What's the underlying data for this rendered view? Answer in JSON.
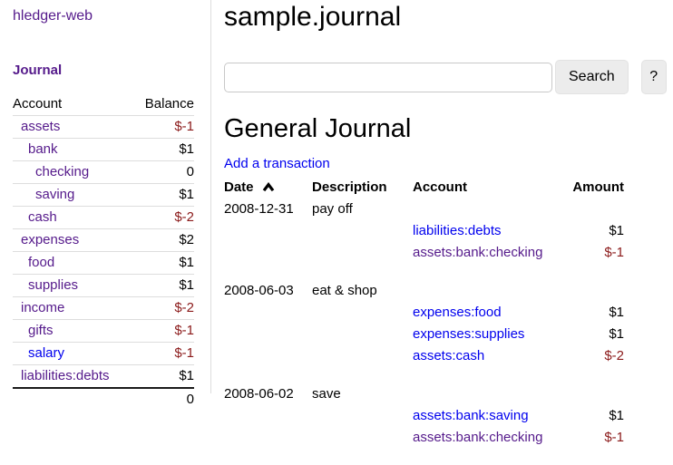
{
  "app": {
    "title": "hledger-web"
  },
  "colors": {
    "link": "#0000ee",
    "visited_link": "#551a8b",
    "negative": "#8b1a1a",
    "row_border": "#dddddd",
    "panel_border": "#dddddd",
    "button_bg": "#ececec",
    "input_border": "#c8c8c8"
  },
  "sidebar": {
    "journal_link": "Journal",
    "accounts_table": {
      "headers": {
        "account": "Account",
        "balance": "Balance"
      },
      "rows": [
        {
          "name": "assets",
          "level": 1,
          "balance": "$-1",
          "negative": true,
          "visited": true
        },
        {
          "name": "bank",
          "level": 2,
          "balance": "$1",
          "negative": false,
          "visited": true
        },
        {
          "name": "checking",
          "level": 3,
          "balance": "0",
          "negative": false,
          "visited": true
        },
        {
          "name": "saving",
          "level": 3,
          "balance": "$1",
          "negative": false,
          "visited": true
        },
        {
          "name": "cash",
          "level": 2,
          "balance": "$-2",
          "negative": true,
          "visited": true
        },
        {
          "name": "expenses",
          "level": 1,
          "balance": "$2",
          "negative": false,
          "visited": true
        },
        {
          "name": "food",
          "level": 2,
          "balance": "$1",
          "negative": false,
          "visited": true
        },
        {
          "name": "supplies",
          "level": 2,
          "balance": "$1",
          "negative": false,
          "visited": true
        },
        {
          "name": "income",
          "level": 1,
          "balance": "$-2",
          "negative": true,
          "visited": true
        },
        {
          "name": "gifts",
          "level": 2,
          "balance": "$-1",
          "negative": true,
          "visited": true
        },
        {
          "name": "salary",
          "level": 2,
          "balance": "$-1",
          "negative": true,
          "visited": false
        },
        {
          "name": "liabilities:debts",
          "level": 1,
          "balance": "$1",
          "negative": false,
          "visited": true
        }
      ],
      "total": "0"
    }
  },
  "main": {
    "title": "sample.journal",
    "search": {
      "value": "",
      "placeholder": "",
      "button_label": "Search",
      "help_label": "?"
    },
    "journal": {
      "heading": "General Journal",
      "add_link": "Add a transaction",
      "table_headers": {
        "date": "Date",
        "description": "Description",
        "account": "Account",
        "amount": "Amount"
      },
      "sort_icon": "chevron-up",
      "transactions": [
        {
          "date": "2008-12-31",
          "description": "pay off",
          "postings": [
            {
              "account": "liabilities:debts",
              "amount": "$1",
              "negative": false,
              "visited": false
            },
            {
              "account": "assets:bank:checking",
              "amount": "$-1",
              "negative": true,
              "visited": true
            }
          ]
        },
        {
          "date": "2008-06-03",
          "description": "eat & shop",
          "postings": [
            {
              "account": "expenses:food",
              "amount": "$1",
              "negative": false,
              "visited": false
            },
            {
              "account": "expenses:supplies",
              "amount": "$1",
              "negative": false,
              "visited": false
            },
            {
              "account": "assets:cash",
              "amount": "$-2",
              "negative": true,
              "visited": false
            }
          ]
        },
        {
          "date": "2008-06-02",
          "description": "save",
          "postings": [
            {
              "account": "assets:bank:saving",
              "amount": "$1",
              "negative": false,
              "visited": false
            },
            {
              "account": "assets:bank:checking",
              "amount": "$-1",
              "negative": true,
              "visited": true
            }
          ]
        }
      ]
    }
  }
}
